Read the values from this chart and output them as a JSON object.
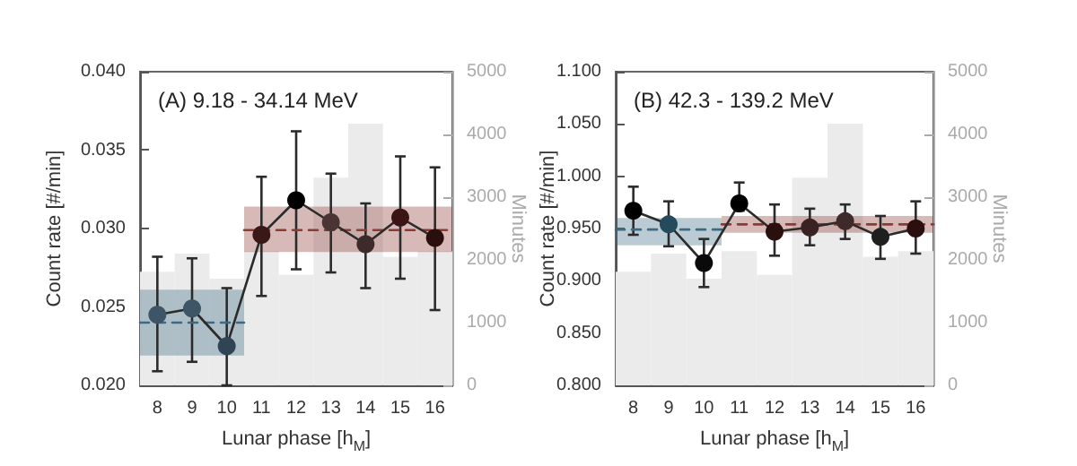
{
  "chart_data": [
    {
      "type": "line",
      "annotations": [
        "(A) 9.18 - 34.14 MeV"
      ],
      "xlabel": "Lunar phase [h$_{M}$]",
      "ylabel": "Count rate [#/min]",
      "y2label": "Minutes",
      "xlim": [
        7.5,
        16.5
      ],
      "xticks": [
        8,
        9,
        10,
        11,
        12,
        13,
        14,
        15,
        16
      ],
      "ylim": [
        0.02,
        0.04
      ],
      "yticks": [
        {
          "value": 0.02,
          "label": "0.020"
        },
        {
          "value": 0.025,
          "label": "0.025"
        },
        {
          "value": 0.03,
          "label": "0.030"
        },
        {
          "value": 0.035,
          "label": "0.035"
        },
        {
          "value": 0.04,
          "label": "0.040"
        }
      ],
      "y2lim": [
        0,
        5000
      ],
      "y2ticks": [
        0,
        1000,
        2000,
        3000,
        4000,
        5000
      ],
      "series": [
        {
          "type": "histogram",
          "axis": "y2",
          "color": "#ebebeb",
          "bins": [
            7.5,
            8.5,
            9.5,
            10.5,
            11.5,
            12.5,
            13.5,
            14.5,
            15.5,
            16.5
          ],
          "values": [
            1810,
            2100,
            1700,
            2140,
            1760,
            3310,
            4170,
            2050,
            2140
          ]
        },
        {
          "color": "#3c6a85",
          "line_style": "dashed",
          "marker": "none",
          "x": [
            7.5,
            10.5
          ],
          "values": [
            0.024,
            0.024
          ],
          "lower": [
            0.0219,
            0.0219
          ],
          "upper": [
            0.0261,
            0.0261
          ]
        },
        {
          "color": "#8b3a34",
          "line_style": "dashed",
          "marker": "none",
          "x": [
            10.5,
            16.5
          ],
          "values": [
            0.0299,
            0.0299
          ],
          "lower": [
            0.0285,
            0.0285
          ],
          "upper": [
            0.0314,
            0.0314
          ]
        },
        {
          "color": "#2b2b2b",
          "line_style": "solid",
          "marker": "circle",
          "x": [
            8,
            9,
            10,
            11,
            12,
            13,
            14,
            15,
            16
          ],
          "values": [
            0.0245,
            0.0249,
            0.0225,
            0.0296,
            0.0318,
            0.0304,
            0.029,
            0.0307,
            0.0294
          ],
          "colors": [
            "#3d5566",
            "#3d5566",
            "#2f4555",
            "#3b1818",
            "#000000",
            "#4a3434",
            "#3d2a2a",
            "#3b1515",
            "#2b0e0e"
          ],
          "errors": [
            [
              0.0209,
              0.0282
            ],
            [
              0.0215,
              0.0281
            ],
            [
              0.02,
              0.0262
            ],
            [
              0.0257,
              0.0333
            ],
            [
              0.0274,
              0.0362
            ],
            [
              0.0272,
              0.0335
            ],
            [
              0.0262,
              0.0316
            ],
            [
              0.0268,
              0.0346
            ],
            [
              0.0248,
              0.0339
            ]
          ]
        }
      ]
    },
    {
      "type": "line",
      "annotations": [
        "(B) 42.3 - 139.2 MeV"
      ],
      "xlabel": "Lunar phase [h$_{M}$]",
      "ylabel": "Count rate [#/min]",
      "y2label": "Minutes",
      "xlim": [
        7.5,
        16.5
      ],
      "xticks": [
        8,
        9,
        10,
        11,
        12,
        13,
        14,
        15,
        16
      ],
      "ylim": [
        0.8,
        1.1
      ],
      "yticks": [
        {
          "value": 0.8,
          "label": "0.800"
        },
        {
          "value": 0.85,
          "label": "0.850"
        },
        {
          "value": 0.9,
          "label": "0.900"
        },
        {
          "value": 0.95,
          "label": "0.950"
        },
        {
          "value": 1.0,
          "label": "1.000"
        },
        {
          "value": 1.05,
          "label": "1.050"
        },
        {
          "value": 1.1,
          "label": "1.100"
        }
      ],
      "y2lim": [
        0,
        5000
      ],
      "y2ticks": [
        0,
        1000,
        2000,
        3000,
        4000,
        5000
      ],
      "series": [
        {
          "type": "histogram",
          "axis": "y2",
          "color": "#ebebeb",
          "bins": [
            7.5,
            8.5,
            9.5,
            10.5,
            11.5,
            12.5,
            13.5,
            14.5,
            15.5,
            16.5
          ],
          "values": [
            1810,
            2100,
            1700,
            2140,
            1760,
            3310,
            4170,
            2050,
            2140
          ]
        },
        {
          "color": "#3c6a85",
          "line_style": "dashed",
          "marker": "none",
          "x": [
            7.5,
            10.5
          ],
          "values": [
            0.949,
            0.949
          ],
          "lower": [
            0.934,
            0.934
          ],
          "upper": [
            0.96,
            0.96
          ]
        },
        {
          "color": "#8b3a34",
          "line_style": "dashed",
          "marker": "none",
          "x": [
            10.5,
            16.5
          ],
          "values": [
            0.954,
            0.954
          ],
          "lower": [
            0.946,
            0.946
          ],
          "upper": [
            0.962,
            0.962
          ]
        },
        {
          "color": "#2b2b2b",
          "line_style": "solid",
          "marker": "circle",
          "x": [
            8,
            9,
            10,
            11,
            12,
            13,
            14,
            15,
            16
          ],
          "values": [
            0.967,
            0.954,
            0.917,
            0.974,
            0.947,
            0.951,
            0.957,
            0.942,
            0.95
          ],
          "colors": [
            "#000000",
            "#254a5c",
            "#0a0a0a",
            "#000000",
            "#2a0f0f",
            "#3a2222",
            "#3e2a2a",
            "#1f1f1f",
            "#2b0e0e"
          ],
          "errors": [
            [
              0.944,
              0.99
            ],
            [
              0.933,
              0.976
            ],
            [
              0.894,
              0.94
            ],
            [
              0.967,
              0.994
            ],
            [
              0.924,
              0.973
            ],
            [
              0.934,
              0.969
            ],
            [
              0.94,
              0.973
            ],
            [
              0.921,
              0.962
            ],
            [
              0.926,
              0.976
            ]
          ]
        }
      ]
    }
  ]
}
